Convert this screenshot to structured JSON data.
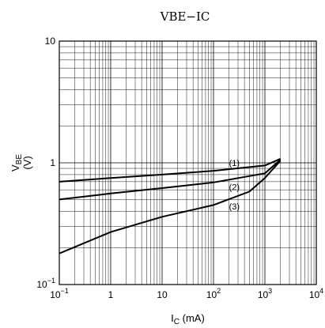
{
  "chart_data": {
    "type": "line",
    "title": "VBE−IC",
    "xlabel": {
      "main": "I",
      "sub": "C",
      "unit": " (mA)"
    },
    "ylabel": {
      "main": "V",
      "sub": "BE",
      "unit": "(V)"
    },
    "x_scale": "log",
    "y_scale": "log",
    "xlim": [
      0.1,
      10000
    ],
    "ylim": [
      0.1,
      10
    ],
    "grid": true,
    "x_ticks": [
      {
        "base": "10",
        "exp": "−1"
      },
      {
        "base": "1",
        "exp": ""
      },
      {
        "base": "10",
        "exp": ""
      },
      {
        "base": "10",
        "exp": "2"
      },
      {
        "base": "10",
        "exp": "3"
      },
      {
        "base": "10",
        "exp": "4"
      }
    ],
    "y_ticks": [
      {
        "base": "10",
        "exp": "−1"
      },
      {
        "base": "1",
        "exp": ""
      },
      {
        "base": "10",
        "exp": ""
      }
    ],
    "series": [
      {
        "name": "(1)",
        "x": [
          0.1,
          1,
          10,
          100,
          1000,
          2000
        ],
        "y": [
          0.7,
          0.75,
          0.8,
          0.86,
          0.95,
          1.08
        ]
      },
      {
        "name": "(2)",
        "x": [
          0.1,
          1,
          10,
          100,
          1000,
          2000
        ],
        "y": [
          0.5,
          0.56,
          0.62,
          0.69,
          0.82,
          1.06
        ]
      },
      {
        "name": "(3)",
        "x": [
          0.1,
          1,
          10,
          100,
          500,
          1000,
          2000
        ],
        "y": [
          0.18,
          0.27,
          0.36,
          0.45,
          0.58,
          0.75,
          1.04
        ]
      }
    ]
  }
}
